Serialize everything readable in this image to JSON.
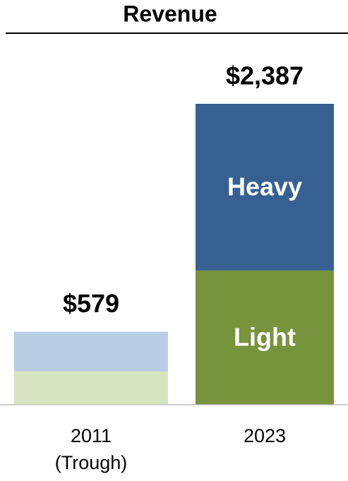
{
  "chart_data": {
    "type": "stacked-bar",
    "title": "Revenue",
    "categories": [
      "2011 (Trough)",
      "2023"
    ],
    "series": [
      {
        "name": "Light",
        "colors": [
          "#d8e4bf",
          "#77933c"
        ],
        "values": [
          264,
          1065
        ]
      },
      {
        "name": "Heavy",
        "colors": [
          "#b9cde5",
          "#376092"
        ],
        "values": [
          315,
          1322
        ]
      }
    ],
    "totals": [
      579,
      2387
    ],
    "total_labels": [
      "$579",
      "$2,387"
    ]
  }
}
